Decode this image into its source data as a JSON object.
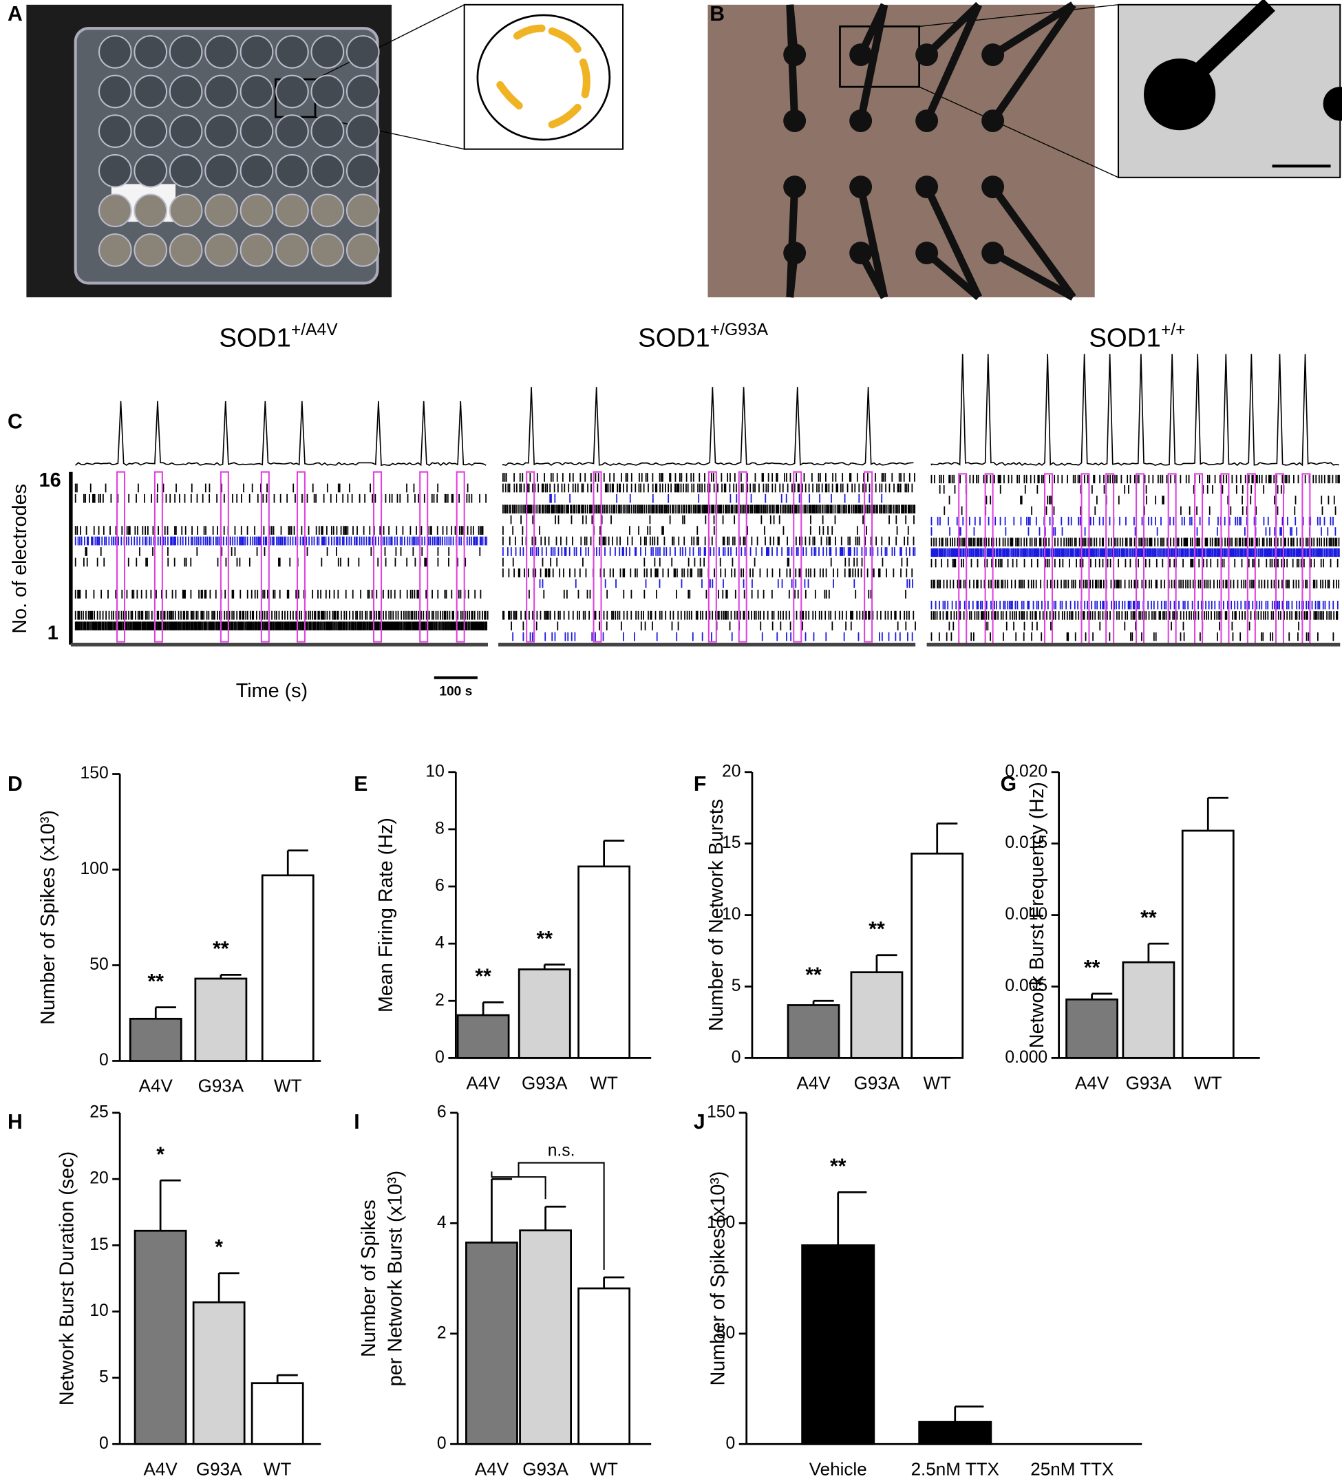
{
  "panel_labels": [
    "A",
    "B",
    "C",
    "D",
    "E",
    "F",
    "G",
    "H",
    "I",
    "J"
  ],
  "panel_c": {
    "titles": [
      {
        "base": "SOD1",
        "sup": "+/A4V"
      },
      {
        "base": "SOD1",
        "sup": "+/G93A"
      },
      {
        "base": "SOD1",
        "sup": "+/+"
      }
    ],
    "y_label": "No. of electrodes",
    "y_ticks": [
      "16",
      "1"
    ],
    "x_label": "Time (s)",
    "scale_bar": "100 s"
  },
  "chart_data": [
    {
      "type": "bar",
      "y_label": [
        "Number of Spikes (x10³)"
      ],
      "categories": [
        "A4V",
        "G93A",
        "WT"
      ],
      "values": [
        22,
        43,
        97
      ],
      "errors": [
        6,
        2,
        13
      ],
      "colors": [
        "#7a7a7a",
        "#d3d3d3",
        "#ffffff"
      ],
      "annotations": [
        "**",
        "**",
        null
      ],
      "ylim": [
        0,
        150
      ],
      "yticks": [
        0,
        50,
        100,
        150
      ]
    },
    {
      "type": "bar",
      "y_label": [
        "Mean Firing Rate (Hz)"
      ],
      "categories": [
        "A4V",
        "G93A",
        "WT"
      ],
      "values": [
        1.5,
        3.1,
        6.7
      ],
      "errors": [
        0.45,
        0.17,
        0.9
      ],
      "colors": [
        "#7a7a7a",
        "#d3d3d3",
        "#ffffff"
      ],
      "annotations": [
        "**",
        "**",
        null
      ],
      "ylim": [
        0,
        10
      ],
      "yticks": [
        0,
        2,
        4,
        6,
        8,
        10
      ]
    },
    {
      "type": "bar",
      "y_label": [
        "Number of Network Bursts"
      ],
      "categories": [
        "A4V",
        "G93A",
        "WT"
      ],
      "values": [
        3.7,
        6.0,
        14.3
      ],
      "errors": [
        0.3,
        1.2,
        2.1
      ],
      "colors": [
        "#7a7a7a",
        "#d3d3d3",
        "#ffffff"
      ],
      "annotations": [
        "**",
        "**",
        null
      ],
      "ylim": [
        0,
        20
      ],
      "yticks": [
        0,
        5,
        10,
        15,
        20
      ]
    },
    {
      "type": "bar",
      "y_label": [
        "Network Burst Frequency (Hz)"
      ],
      "categories": [
        "A4V",
        "G93A",
        "WT"
      ],
      "values": [
        0.0041,
        0.0067,
        0.0159
      ],
      "errors": [
        0.0004,
        0.0013,
        0.0023
      ],
      "colors": [
        "#7a7a7a",
        "#d3d3d3",
        "#ffffff"
      ],
      "annotations": [
        "**",
        "**",
        null
      ],
      "ylim": [
        0,
        0.02
      ],
      "yticks": [
        {
          "value": 0,
          "label": "0.000"
        },
        {
          "value": 0.005,
          "label": "0.005"
        },
        {
          "value": 0.01,
          "label": "0.010"
        },
        {
          "value": 0.015,
          "label": "0.015"
        },
        {
          "value": 0.02,
          "label": "0.020"
        }
      ]
    },
    {
      "type": "bar",
      "y_label": [
        "Network Burst Duration (sec)"
      ],
      "categories": [
        "A4V",
        "G93A",
        "WT"
      ],
      "values": [
        16.1,
        10.7,
        4.6
      ],
      "errors": [
        3.8,
        2.2,
        0.6
      ],
      "colors": [
        "#7a7a7a",
        "#d3d3d3",
        "#ffffff"
      ],
      "annotations": [
        "*",
        "*",
        null
      ],
      "ylim": [
        0,
        25
      ],
      "yticks": [
        0,
        5,
        10,
        15,
        20,
        25
      ]
    },
    {
      "type": "bar",
      "y_label": [
        "Number of Spikes",
        "per Network Burst (x10³)"
      ],
      "categories": [
        "A4V",
        "G93A",
        "WT"
      ],
      "values": [
        3.65,
        3.87,
        2.82
      ],
      "errors": [
        1.15,
        0.43,
        0.2
      ],
      "colors": [
        "#7a7a7a",
        "#d3d3d3",
        "#ffffff"
      ],
      "bracket_label": "n.s.",
      "ylim": [
        0,
        6
      ],
      "yticks": [
        0,
        2,
        4,
        6
      ]
    },
    {
      "type": "bar",
      "y_label": [
        "Number of Spikes (x10³)"
      ],
      "categories": [
        "Vehicle",
        "2.5nM TTX",
        "25nM TTX"
      ],
      "values": [
        90,
        10,
        0
      ],
      "errors": [
        24,
        7,
        0
      ],
      "colors": [
        "#000000",
        "#000000",
        "#000000"
      ],
      "annotations": [
        "**",
        null,
        null
      ],
      "ylim": [
        0,
        150
      ],
      "yticks": [
        0,
        50,
        100,
        150
      ]
    }
  ]
}
